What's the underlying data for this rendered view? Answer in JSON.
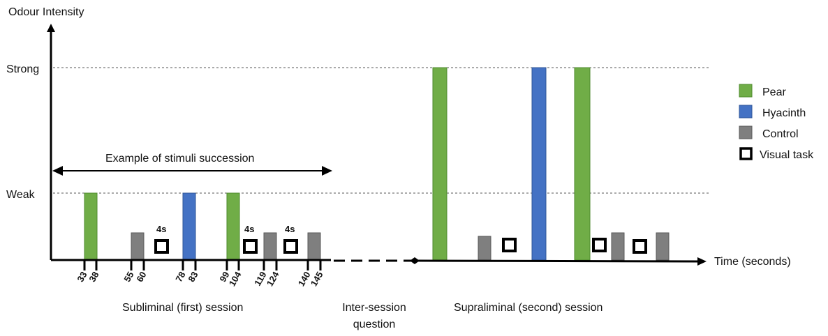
{
  "axes": {
    "y_label": "Odour Intensity",
    "x_label": "Time (seconds)",
    "levels": {
      "strong": "Strong",
      "weak": "Weak"
    }
  },
  "colors": {
    "pear": "#70ad47",
    "pear_border": "#4e8a2e",
    "hyacinth": "#4472c4",
    "hyacinth_border": "#2f5597",
    "control": "#7f7f7f",
    "control_border": "#5a5a5a",
    "axis": "#000000"
  },
  "legend": {
    "pear": "Pear",
    "hyacinth": "Hyacinth",
    "control": "Control",
    "visual_task": "Visual task"
  },
  "annotation": {
    "succession": "Example of stimuli succession"
  },
  "durations": {
    "visual_task": "4s"
  },
  "sessions": {
    "first": "Subliminal (first) session",
    "inter_line1": "Inter-session",
    "inter_line2": "question",
    "second": "Supraliminal (second) session"
  },
  "chart_data": {
    "type": "bar",
    "y_levels": [
      "Weak",
      "Strong"
    ],
    "first_session": {
      "stimuli": [
        {
          "odour": "Pear",
          "start": 33,
          "end": 38,
          "intensity": "Weak"
        },
        {
          "odour": "Control",
          "start": 55,
          "end": 60,
          "intensity": "Control"
        },
        {
          "odour": "Visual task",
          "duration": "4s"
        },
        {
          "odour": "Hyacinth",
          "start": 78,
          "end": 83,
          "intensity": "Weak"
        },
        {
          "odour": "Pear",
          "start": 99,
          "end": 104,
          "intensity": "Weak"
        },
        {
          "odour": "Visual task",
          "duration": "4s"
        },
        {
          "odour": "Control",
          "start": 119,
          "end": 124,
          "intensity": "Control"
        },
        {
          "odour": "Visual task",
          "duration": "4s"
        },
        {
          "odour": "Control",
          "start": 140,
          "end": 145,
          "intensity": "Control"
        }
      ],
      "ticks": [
        "33",
        "38",
        "55",
        "60",
        "78",
        "83",
        "99",
        "104",
        "119",
        "124",
        "140",
        "145"
      ]
    },
    "second_session": {
      "stimuli": [
        {
          "odour": "Pear",
          "intensity": "Strong"
        },
        {
          "odour": "Control",
          "intensity": "Control"
        },
        {
          "odour": "Visual task"
        },
        {
          "odour": "Hyacinth",
          "intensity": "Strong"
        },
        {
          "odour": "Pear",
          "intensity": "Strong"
        },
        {
          "odour": "Visual task"
        },
        {
          "odour": "Control",
          "intensity": "Control"
        },
        {
          "odour": "Visual task"
        },
        {
          "odour": "Control",
          "intensity": "Control"
        }
      ]
    }
  }
}
